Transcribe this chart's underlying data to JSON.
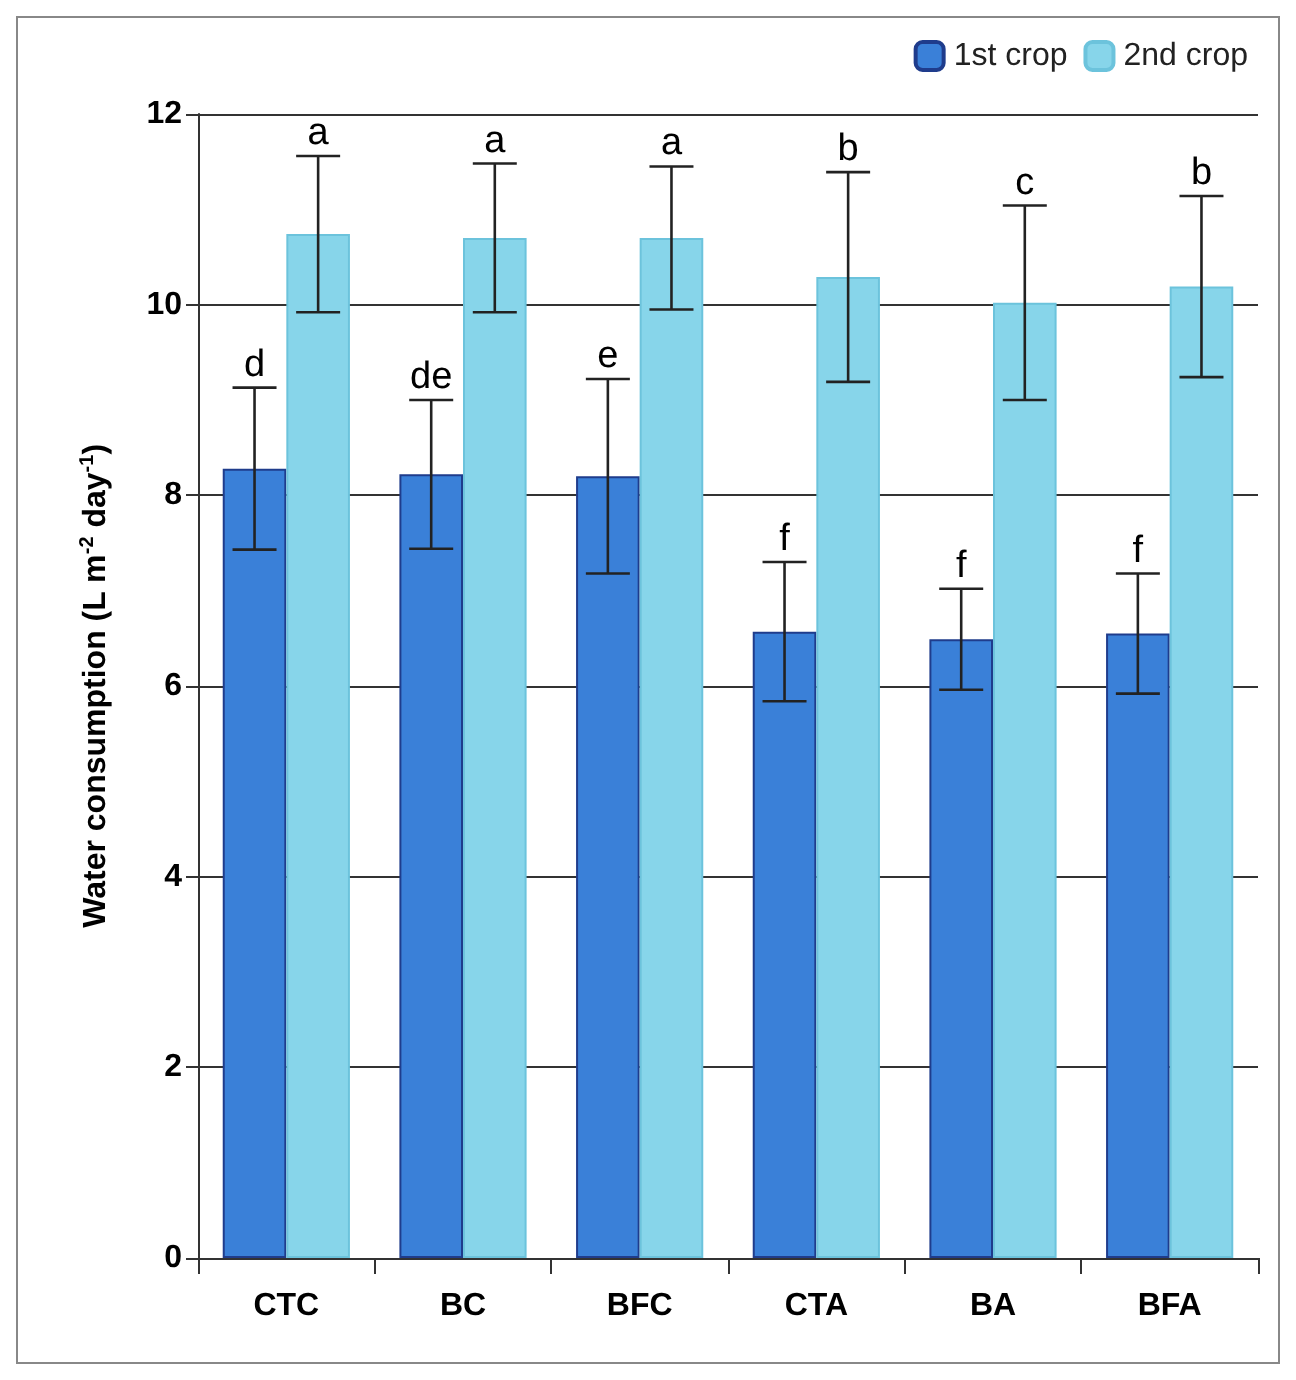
{
  "chart_data": {
    "type": "bar",
    "ylabel": "Water consumption (L m$^{-2}$ day$^{-1}$)",
    "categories": [
      "CTC",
      "BC",
      "BFC",
      "CTA",
      "BA",
      "BFA"
    ],
    "series": [
      {
        "name": "1st crop",
        "color": "#3a80d8",
        "values": [
          8.28,
          8.22,
          8.2,
          6.57,
          6.49,
          6.55
        ],
        "errors": [
          0.85,
          0.78,
          1.02,
          0.73,
          0.53,
          0.63
        ]
      },
      {
        "name": "2nd crop",
        "color": "#87d5ea",
        "values": [
          10.74,
          10.7,
          10.7,
          10.29,
          10.02,
          10.19
        ],
        "errors": [
          0.82,
          0.78,
          0.75,
          1.1,
          1.02,
          0.95
        ]
      }
    ],
    "annotations": [
      {
        "text": "d",
        "x": "CTC",
        "y": 9.13
      },
      {
        "text": "a",
        "x": "CTC",
        "y": 11.56
      },
      {
        "text": "de",
        "x": "BC",
        "y": 9.0
      },
      {
        "text": "a",
        "x": "BC",
        "y": 11.48
      },
      {
        "text": "e",
        "x": "BFC",
        "y": 9.22
      },
      {
        "text": "a",
        "x": "BFC",
        "y": 11.45
      },
      {
        "text": "f",
        "x": "CTA",
        "y": 7.3
      },
      {
        "text": "b",
        "x": "CTA",
        "y": 11.39
      },
      {
        "text": "f",
        "x": "BA",
        "y": 7.02
      },
      {
        "text": "c",
        "x": "BA",
        "y": 11.04
      },
      {
        "text": "f",
        "x": "BFA",
        "y": 7.18
      },
      {
        "text": "b",
        "x": "BFA",
        "y": 11.14
      }
    ],
    "ylim": [
      0,
      12
    ],
    "yticks": [
      0,
      2,
      4,
      6,
      8,
      10,
      12
    ],
    "grid": "y",
    "legend": "top right"
  }
}
